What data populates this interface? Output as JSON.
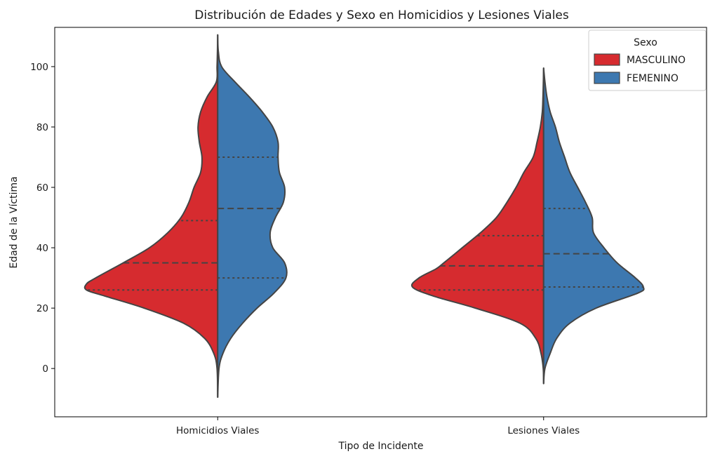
{
  "chart_data": {
    "type": "violin",
    "split": true,
    "title": "Distribución de Edades y Sexo en Homicidios y Lesiones Viales",
    "xlabel": "Tipo de Incidente",
    "ylabel": "Edad de la Víctima",
    "ylim": [
      -16,
      113
    ],
    "yticks": [
      0,
      20,
      40,
      60,
      80,
      100
    ],
    "categories": [
      "Homicidios Viales",
      "Lesiones Viales"
    ],
    "grid": false,
    "legend": {
      "title": "Sexo",
      "position": "top-right"
    },
    "series": [
      {
        "name": "MASCULINO",
        "color": "#d62b2f",
        "violins": [
          {
            "category": "Homicidios Viales",
            "quartiles": [
              26,
              35,
              49
            ],
            "profile": [
              [
                -9.5,
                0.0
              ],
              [
                0,
                0.005
              ],
              [
                5,
                0.03
              ],
              [
                10,
                0.1
              ],
              [
                15,
                0.26
              ],
              [
                20,
                0.56
              ],
              [
                24,
                0.86
              ],
              [
                26,
                1.0
              ],
              [
                28,
                1.0
              ],
              [
                30,
                0.93
              ],
              [
                35,
                0.72
              ],
              [
                40,
                0.52
              ],
              [
                45,
                0.38
              ],
              [
                50,
                0.28
              ],
              [
                55,
                0.22
              ],
              [
                60,
                0.18
              ],
              [
                65,
                0.13
              ],
              [
                70,
                0.12
              ],
              [
                75,
                0.14
              ],
              [
                80,
                0.15
              ],
              [
                85,
                0.13
              ],
              [
                90,
                0.08
              ],
              [
                95,
                0.01
              ],
              [
                100,
                0.005
              ],
              [
                105,
                0.002
              ],
              [
                110.5,
                0.0
              ]
            ]
          },
          {
            "category": "Lesiones Viales",
            "quartiles": [
              26,
              34,
              44
            ],
            "profile": [
              [
                -5,
                0.0
              ],
              [
                0,
                0.003
              ],
              [
                5,
                0.02
              ],
              [
                10,
                0.06
              ],
              [
                15,
                0.18
              ],
              [
                20,
                0.52
              ],
              [
                24,
                0.84
              ],
              [
                27,
                1.0
              ],
              [
                30,
                0.95
              ],
              [
                33,
                0.82
              ],
              [
                35,
                0.76
              ],
              [
                40,
                0.62
              ],
              [
                45,
                0.48
              ],
              [
                50,
                0.36
              ],
              [
                55,
                0.28
              ],
              [
                60,
                0.21
              ],
              [
                65,
                0.15
              ],
              [
                70,
                0.08
              ],
              [
                75,
                0.05
              ],
              [
                80,
                0.025
              ],
              [
                85,
                0.01
              ],
              [
                90,
                0.005
              ],
              [
                95,
                0.002
              ],
              [
                99.5,
                0.0
              ]
            ]
          }
        ]
      },
      {
        "name": "FEMENINO",
        "color": "#3d78b0",
        "violins": [
          {
            "category": "Homicidios Viales",
            "quartiles": [
              30,
              53,
              70
            ],
            "profile": [
              [
                -9.5,
                0.0
              ],
              [
                0,
                0.01
              ],
              [
                5,
                0.04
              ],
              [
                10,
                0.1
              ],
              [
                15,
                0.19
              ],
              [
                20,
                0.3
              ],
              [
                25,
                0.43
              ],
              [
                30,
                0.52
              ],
              [
                35,
                0.51
              ],
              [
                40,
                0.42
              ],
              [
                45,
                0.4
              ],
              [
                50,
                0.44
              ],
              [
                55,
                0.5
              ],
              [
                60,
                0.51
              ],
              [
                65,
                0.47
              ],
              [
                70,
                0.46
              ],
              [
                75,
                0.46
              ],
              [
                80,
                0.42
              ],
              [
                85,
                0.34
              ],
              [
                90,
                0.24
              ],
              [
                95,
                0.13
              ],
              [
                100,
                0.03
              ],
              [
                105,
                0.005
              ],
              [
                110.5,
                0.0
              ]
            ]
          },
          {
            "category": "Lesiones Viales",
            "quartiles": [
              27,
              38,
              53
            ],
            "profile": [
              [
                -5,
                0.0
              ],
              [
                0,
                0.01
              ],
              [
                5,
                0.05
              ],
              [
                10,
                0.1
              ],
              [
                15,
                0.2
              ],
              [
                20,
                0.4
              ],
              [
                25,
                0.72
              ],
              [
                27,
                0.76
              ],
              [
                30,
                0.7
              ],
              [
                35,
                0.56
              ],
              [
                40,
                0.46
              ],
              [
                45,
                0.38
              ],
              [
                50,
                0.37
              ],
              [
                55,
                0.32
              ],
              [
                60,
                0.26
              ],
              [
                65,
                0.2
              ],
              [
                70,
                0.16
              ],
              [
                75,
                0.12
              ],
              [
                80,
                0.09
              ],
              [
                85,
                0.05
              ],
              [
                90,
                0.025
              ],
              [
                95,
                0.01
              ],
              [
                99.5,
                0.0
              ]
            ]
          }
        ]
      }
    ]
  }
}
